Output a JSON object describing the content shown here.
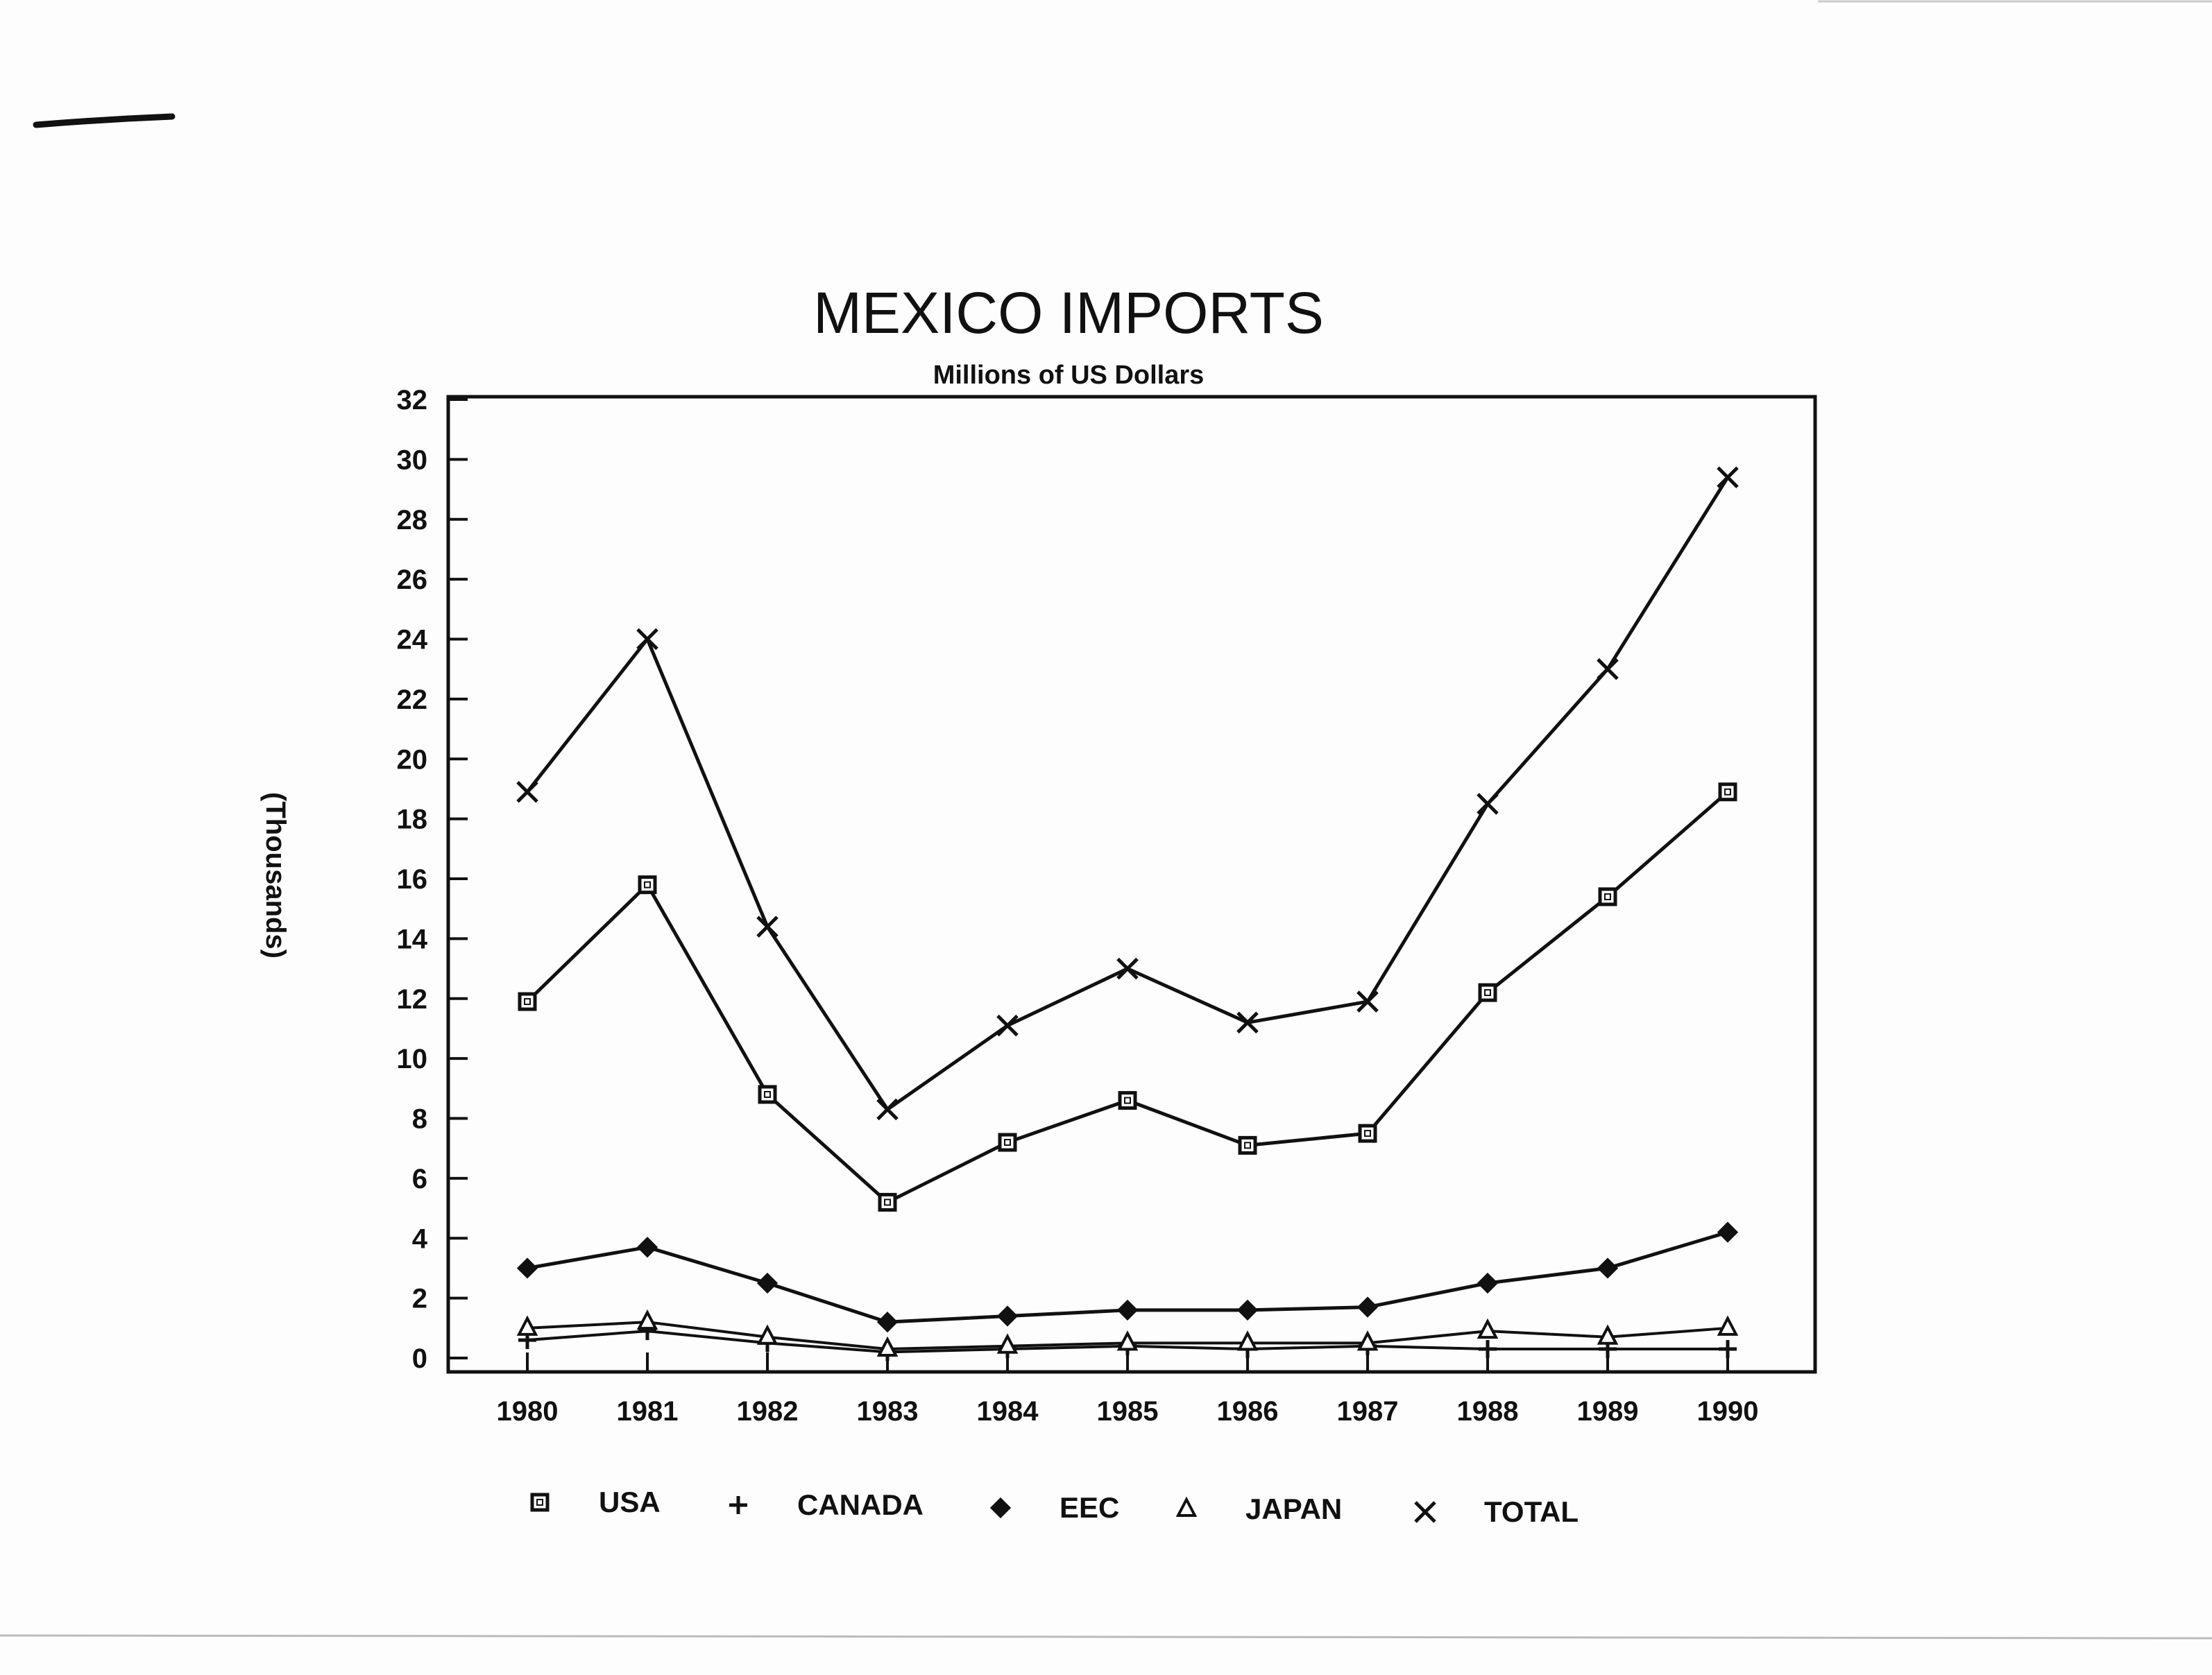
{
  "chart_data": {
    "type": "line",
    "title": "MEXICO IMPORTS",
    "subtitle": "Millions of US Dollars",
    "xlabel": "",
    "ylabel": "(Thousands)",
    "x": [
      "1980",
      "1981",
      "1982",
      "1983",
      "1984",
      "1985",
      "1986",
      "1987",
      "1988",
      "1989",
      "1990"
    ],
    "ylim": [
      0,
      32
    ],
    "yticks": [
      0,
      2,
      4,
      6,
      8,
      10,
      12,
      14,
      16,
      18,
      20,
      22,
      24,
      26,
      28,
      30,
      32
    ],
    "grid": false,
    "legend_position": "bottom",
    "series": [
      {
        "name": "USA",
        "marker": "square",
        "values": [
          11.9,
          15.8,
          8.8,
          5.2,
          7.2,
          8.6,
          7.1,
          7.5,
          12.2,
          15.4,
          18.9
        ]
      },
      {
        "name": "CANADA",
        "marker": "plus",
        "values": [
          0.6,
          0.9,
          0.5,
          0.2,
          0.3,
          0.4,
          0.3,
          0.4,
          0.3,
          0.3,
          0.3
        ]
      },
      {
        "name": "EEC",
        "marker": "diamond",
        "values": [
          3.0,
          3.7,
          2.5,
          1.2,
          1.4,
          1.6,
          1.6,
          1.7,
          2.5,
          3.0,
          4.2
        ]
      },
      {
        "name": "JAPAN",
        "marker": "triangle",
        "values": [
          1.0,
          1.2,
          0.7,
          0.3,
          0.4,
          0.5,
          0.5,
          0.5,
          0.9,
          0.7,
          1.0
        ]
      },
      {
        "name": "TOTAL",
        "marker": "x",
        "values": [
          18.9,
          24.0,
          14.4,
          8.3,
          11.1,
          13.0,
          11.2,
          11.9,
          18.5,
          23.0,
          29.4
        ]
      }
    ]
  }
}
